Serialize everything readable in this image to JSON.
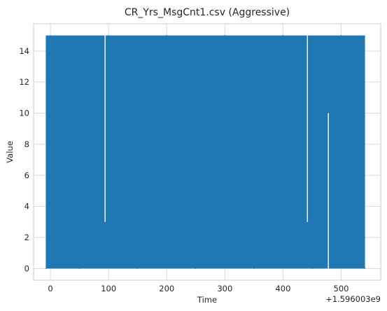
{
  "chart_data": {
    "type": "line",
    "title": "CR_Yrs_MsgCnt1.csv (Aggressive)",
    "xlabel": "Time",
    "ylabel": "Value",
    "x_offset_label": "+1.596003e9",
    "xlim": [
      -29,
      568
    ],
    "ylim": [
      -0.75,
      15.75
    ],
    "x_ticks": [
      0,
      100,
      200,
      300,
      400,
      500
    ],
    "y_ticks": [
      0,
      2,
      4,
      6,
      8,
      10,
      12,
      14
    ],
    "grid": true,
    "style": "seaborn-whitegrid",
    "x_range": [
      -8,
      541
    ],
    "value_range": [
      0,
      15
    ],
    "series": [
      {
        "color": "#1f77b4",
        "x": [
          -8,
          0,
          50,
          100,
          150,
          200,
          250,
          300,
          350,
          400,
          450,
          500,
          541
        ],
        "values": [
          0,
          15,
          0,
          15,
          0,
          15,
          0,
          15,
          0,
          15,
          0,
          15,
          0
        ]
      }
    ],
    "visible_gaps": [
      {
        "x": 94,
        "min_value": 3,
        "max_value": 15
      },
      {
        "x": 442,
        "min_value": 3,
        "max_value": 15
      },
      {
        "x": 478,
        "min_value": 0,
        "max_value": 10
      }
    ]
  }
}
